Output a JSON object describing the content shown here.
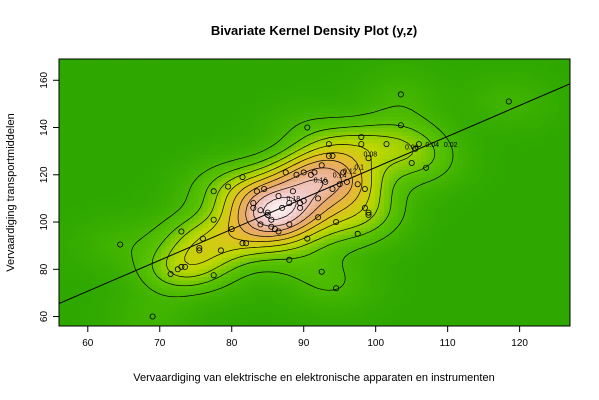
{
  "chart_data": {
    "type": "scatter",
    "title": "Bivariate Kernel Density Plot (y,z)",
    "xlabel": "Vervaardiging van elektrische en elektronische apparaten en instrumenten",
    "ylabel": "Vervaardiging transportmiddelen",
    "xlim": [
      56,
      127
    ],
    "ylim": [
      56,
      169
    ],
    "x_ticks": [
      60,
      70,
      80,
      90,
      100,
      110,
      120
    ],
    "y_ticks": [
      60,
      80,
      100,
      120,
      140,
      160
    ],
    "contour_labels": [
      "0.02",
      "0.04",
      "0.06",
      "0.08",
      "0.1",
      "0.12",
      "0.14",
      "0.16",
      "0.18"
    ],
    "regression_line": {
      "x": [
        56,
        127
      ],
      "y": [
        65.5,
        158.5
      ]
    },
    "points": [
      [
        64.5,
        90.5
      ],
      [
        69,
        60
      ],
      [
        71.5,
        78
      ],
      [
        72.5,
        80
      ],
      [
        73,
        96
      ],
      [
        73,
        81
      ],
      [
        73.5,
        81
      ],
      [
        75.5,
        88
      ],
      [
        75.5,
        89
      ],
      [
        76,
        93
      ],
      [
        77.5,
        77.5
      ],
      [
        77.5,
        101
      ],
      [
        77.5,
        113
      ],
      [
        78.5,
        88
      ],
      [
        79.5,
        115
      ],
      [
        80,
        97
      ],
      [
        81.5,
        91
      ],
      [
        81.5,
        119
      ],
      [
        82,
        91
      ],
      [
        83,
        108
      ],
      [
        83,
        106
      ],
      [
        83.5,
        113
      ],
      [
        84,
        105
      ],
      [
        84,
        99
      ],
      [
        84.5,
        114
      ],
      [
        85,
        104
      ],
      [
        85,
        103
      ],
      [
        85.5,
        101
      ],
      [
        85.5,
        98
      ],
      [
        86,
        97
      ],
      [
        86.5,
        96
      ],
      [
        86.5,
        111
      ],
      [
        87,
        106
      ],
      [
        87.5,
        121
      ],
      [
        88,
        84
      ],
      [
        88,
        99
      ],
      [
        88,
        108
      ],
      [
        88.5,
        113
      ],
      [
        89,
        120
      ],
      [
        89.5,
        108
      ],
      [
        89.5,
        106
      ],
      [
        90,
        121
      ],
      [
        90,
        109
      ],
      [
        90.5,
        140
      ],
      [
        90.5,
        93
      ],
      [
        91,
        120
      ],
      [
        91.5,
        121
      ],
      [
        92,
        102
      ],
      [
        92,
        110
      ],
      [
        92.5,
        124
      ],
      [
        92.5,
        79
      ],
      [
        93,
        117
      ],
      [
        93.5,
        128
      ],
      [
        93.5,
        133
      ],
      [
        94,
        128
      ],
      [
        94,
        114
      ],
      [
        94.5,
        72
      ],
      [
        94.5,
        100
      ],
      [
        95,
        116
      ],
      [
        95.5,
        121
      ],
      [
        96,
        117
      ],
      [
        97.5,
        116
      ],
      [
        97.5,
        95
      ],
      [
        98,
        133
      ],
      [
        98,
        136
      ],
      [
        98.5,
        106
      ],
      [
        98.5,
        114
      ],
      [
        99,
        104
      ],
      [
        99,
        127
      ],
      [
        99,
        103
      ],
      [
        101.5,
        133
      ],
      [
        103.5,
        154
      ],
      [
        103.5,
        141
      ],
      [
        105,
        125
      ],
      [
        105.5,
        131
      ],
      [
        106,
        133
      ],
      [
        107,
        123
      ],
      [
        118.5,
        151
      ]
    ]
  }
}
